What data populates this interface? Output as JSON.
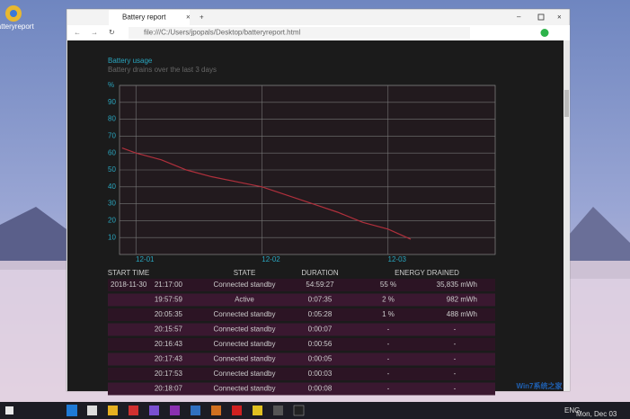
{
  "desktop_icon": "batteryreport",
  "browser": {
    "tab_title": "Battery report",
    "url": "file:///C:/Users/jpopals/Desktop/batteryreport.html"
  },
  "report": {
    "title": "Battery usage",
    "subtitle": "Battery drains over the last 3 days"
  },
  "chart_data": {
    "type": "line",
    "color": "#b0303c",
    "x": [
      0.89,
      1.0,
      1.2,
      1.4,
      1.6,
      1.8,
      2.0,
      2.2,
      2.4,
      2.6,
      2.8,
      3.0,
      3.18
    ],
    "values": [
      63,
      60,
      56,
      50,
      46,
      43,
      40,
      35,
      30,
      25,
      19,
      15,
      9
    ],
    "xlim": [
      0.87,
      3.85
    ],
    "xticks": [
      {
        "value": 1,
        "label": "12-01"
      },
      {
        "value": 2,
        "label": "12-02"
      },
      {
        "value": 3,
        "label": "12-03"
      }
    ],
    "ylim": [
      0,
      100
    ],
    "yticks": [
      10,
      20,
      30,
      40,
      50,
      60,
      70,
      80,
      90,
      {
        "value": 100,
        "label": "%"
      }
    ],
    "grid": true
  },
  "table": {
    "headers": [
      "START TIME",
      "STATE",
      "DURATION",
      "ENERGY DRAINED"
    ],
    "rows": [
      {
        "date": "2018-11-30",
        "time": "21:17:00",
        "state": "Connected standby",
        "duration": "54:59:27",
        "percent": "55 %",
        "energy": "35,835 mWh"
      },
      {
        "time": "19:57:59",
        "state": "Active",
        "duration": "0:07:35",
        "percent": "2 %",
        "energy": "982 mWh"
      },
      {
        "time": "20:05:35",
        "state": "Connected standby",
        "duration": "0:05:28",
        "percent": "1 %",
        "energy": "488 mWh"
      },
      {
        "time": "20:15:57",
        "state": "Connected standby",
        "duration": "0:00:07",
        "percent": "-",
        "energy": "-"
      },
      {
        "time": "20:16:43",
        "state": "Connected standby",
        "duration": "0:00:56",
        "percent": "-",
        "energy": "-"
      },
      {
        "time": "20:17:43",
        "state": "Connected standby",
        "duration": "0:00:05",
        "percent": "-",
        "energy": "-"
      },
      {
        "time": "20:17:53",
        "state": "Connected standby",
        "duration": "0:00:03",
        "percent": "-",
        "energy": "-"
      },
      {
        "time": "20:18:07",
        "state": "Connected standby",
        "duration": "0:00:08",
        "percent": "-",
        "energy": "-"
      }
    ]
  },
  "taskbar": {
    "language": "ENG",
    "date": "Mon, Dec 03"
  },
  "watermark": "Win7系统之家"
}
